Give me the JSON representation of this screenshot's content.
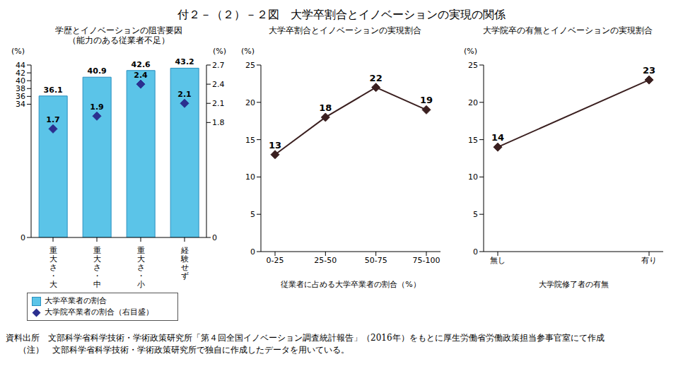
{
  "title": "付２－（２）－２図　大学卒割合とイノベーションの実現の関係",
  "source": "資料出所　文部科学省科学技術・学術政策研究所「第４回全国イノベーション調査統計報告」（2016年）をもとに厚生労働省労働政策担当参事官室にて作成",
  "note": "（注）　文部科学省科学技術・学術政策研究所で独自に作成したデータを用いている。",
  "chart_data": [
    {
      "type": "bar",
      "title": "学歴とイノベーションの阻害要因\n（能力のある従業者不足）",
      "categories": [
        "重大さ・大",
        "重大さ・中",
        "重大さ・小",
        "経験せず"
      ],
      "series": [
        {
          "name": "大学卒業者の割合",
          "type": "bar",
          "color": "#5bc4e8",
          "values": [
            36.1,
            40.9,
            42.6,
            43.2
          ]
        },
        {
          "name": "大学院卒業者の割合（右目盛）",
          "type": "scatter",
          "axis": "y2",
          "color": "#2b2f8f",
          "marker": "diamond",
          "values": [
            1.7,
            1.9,
            2.4,
            2.1
          ]
        }
      ],
      "y_label": "(%)",
      "y2_label": "(%)",
      "ylim": [
        0,
        44
      ],
      "yticks": [
        0,
        34,
        36,
        38,
        40,
        42,
        44
      ],
      "y2lim": [
        0,
        2.7
      ],
      "y2ticks": [
        0,
        1.8,
        2.1,
        2.4,
        2.7
      ],
      "data_labels": true,
      "grid": false,
      "legend": "bottom"
    },
    {
      "type": "line",
      "title": "大学卒割合とイノベーションの実現割合",
      "categories": [
        "0-25",
        "25-50",
        "50-75",
        "75-100"
      ],
      "values": [
        13,
        18,
        22,
        19
      ],
      "color": "#3a1f1f",
      "marker": "diamond",
      "y_label": "(%)",
      "x_label": "従業者に占める大学卒業者の割合（%）",
      "ylim": [
        0,
        25
      ],
      "yticks": [
        0,
        5,
        10,
        15,
        20,
        25
      ],
      "data_labels": true,
      "grid": false
    },
    {
      "type": "line",
      "title": "大学院卒の有無とイノベーションの実現割合",
      "categories": [
        "無し",
        "有り"
      ],
      "values": [
        14,
        23
      ],
      "color": "#3a1f1f",
      "marker": "diamond",
      "y_label": "(%)",
      "x_label": "大学院修了者の有無",
      "ylim": [
        0,
        25
      ],
      "yticks": [
        0,
        5,
        10,
        15,
        20,
        25
      ],
      "data_labels": true,
      "grid": false
    }
  ]
}
